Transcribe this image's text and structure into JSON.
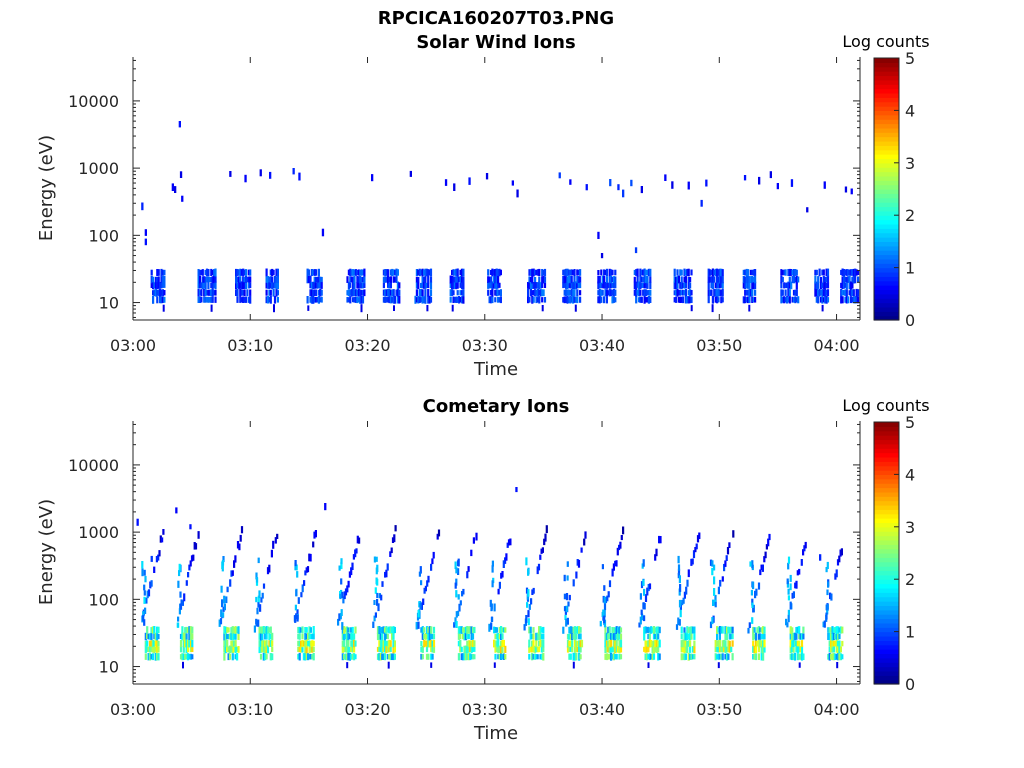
{
  "figure": {
    "title": "RPCICA160207T03.PNG"
  },
  "chart_data": [
    {
      "type": "heatmap",
      "title": "Solar Wind Ions",
      "xlabel": "Time",
      "ylabel": "Energy (eV)",
      "xticks": [
        "03:00",
        "03:10",
        "03:20",
        "03:30",
        "03:40",
        "03:50",
        "04:00"
      ],
      "xlim_minutes": [
        0,
        62
      ],
      "yticks": [
        "10",
        "100",
        "1000",
        "10000"
      ],
      "yscale": "log",
      "ylim": [
        5.5,
        45000
      ],
      "colorbar": {
        "title": "Log counts",
        "ticks": [
          "0",
          "1",
          "2",
          "3",
          "4",
          "5"
        ],
        "range": [
          0,
          5
        ]
      },
      "cycle_start_minutes": [
        1.5,
        5.5,
        8.7,
        11.3,
        14.8,
        18.2,
        21.3,
        24.0,
        27.0,
        30.2,
        33.6,
        36.6,
        39.6,
        42.7,
        46.1,
        49.0,
        52.0,
        55.2,
        58.1,
        60.3
      ],
      "low_band_energies_eV": [
        11,
        14,
        18,
        22,
        28
      ],
      "low_band_level": 0.9,
      "high_band_points": [
        {
          "t": 0.7,
          "e": 270,
          "v": 0.8
        },
        {
          "t": 1.0,
          "e": 80,
          "v": 0.7
        },
        {
          "t": 1.0,
          "e": 110,
          "v": 0.6
        },
        {
          "t": 3.3,
          "e": 520,
          "v": 0.6
        },
        {
          "t": 3.5,
          "e": 480,
          "v": 0.5
        },
        {
          "t": 3.9,
          "e": 4500,
          "v": 0.7
        },
        {
          "t": 4.0,
          "e": 800,
          "v": 0.5
        },
        {
          "t": 4.1,
          "e": 350,
          "v": 0.6
        },
        {
          "t": 8.2,
          "e": 820,
          "v": 0.5
        },
        {
          "t": 9.5,
          "e": 700,
          "v": 0.6
        },
        {
          "t": 10.8,
          "e": 850,
          "v": 0.5
        },
        {
          "t": 11.6,
          "e": 780,
          "v": 0.7
        },
        {
          "t": 13.6,
          "e": 900,
          "v": 0.8
        },
        {
          "t": 14.1,
          "e": 750,
          "v": 0.7
        },
        {
          "t": 16.1,
          "e": 110,
          "v": 0.6
        },
        {
          "t": 20.3,
          "e": 720,
          "v": 0.6
        },
        {
          "t": 23.6,
          "e": 820,
          "v": 0.5
        },
        {
          "t": 26.6,
          "e": 610,
          "v": 0.6
        },
        {
          "t": 27.3,
          "e": 520,
          "v": 0.5
        },
        {
          "t": 28.6,
          "e": 640,
          "v": 0.7
        },
        {
          "t": 30.1,
          "e": 760,
          "v": 0.5
        },
        {
          "t": 32.3,
          "e": 600,
          "v": 0.6
        },
        {
          "t": 32.7,
          "e": 420,
          "v": 0.5
        },
        {
          "t": 36.3,
          "e": 780,
          "v": 0.9
        },
        {
          "t": 37.2,
          "e": 620,
          "v": 0.6
        },
        {
          "t": 38.6,
          "e": 520,
          "v": 0.7
        },
        {
          "t": 39.6,
          "e": 100,
          "v": 0.6
        },
        {
          "t": 39.9,
          "e": 50,
          "v": 0.5
        },
        {
          "t": 40.6,
          "e": 610,
          "v": 1.0
        },
        {
          "t": 41.3,
          "e": 520,
          "v": 0.8
        },
        {
          "t": 41.7,
          "e": 420,
          "v": 0.9
        },
        {
          "t": 42.4,
          "e": 600,
          "v": 1.0
        },
        {
          "t": 42.8,
          "e": 60,
          "v": 0.9
        },
        {
          "t": 43.3,
          "e": 480,
          "v": 0.5
        },
        {
          "t": 45.3,
          "e": 720,
          "v": 0.6
        },
        {
          "t": 45.9,
          "e": 560,
          "v": 0.5
        },
        {
          "t": 47.3,
          "e": 550,
          "v": 0.6
        },
        {
          "t": 48.4,
          "e": 300,
          "v": 0.8
        },
        {
          "t": 48.8,
          "e": 600,
          "v": 0.7
        },
        {
          "t": 52.1,
          "e": 720,
          "v": 0.7
        },
        {
          "t": 53.3,
          "e": 650,
          "v": 0.5
        },
        {
          "t": 54.3,
          "e": 800,
          "v": 0.5
        },
        {
          "t": 54.9,
          "e": 540,
          "v": 0.6
        },
        {
          "t": 56.1,
          "e": 600,
          "v": 0.7
        },
        {
          "t": 57.4,
          "e": 240,
          "v": 0.5
        },
        {
          "t": 58.9,
          "e": 560,
          "v": 0.6
        },
        {
          "t": 60.7,
          "e": 480,
          "v": 0.5
        },
        {
          "t": 61.2,
          "e": 450,
          "v": 0.6
        }
      ]
    },
    {
      "type": "heatmap",
      "title": "Cometary Ions",
      "xlabel": "Time",
      "ylabel": "Energy (eV)",
      "xticks": [
        "03:00",
        "03:10",
        "03:20",
        "03:30",
        "03:40",
        "03:50",
        "04:00"
      ],
      "xlim_minutes": [
        0,
        62
      ],
      "yticks": [
        "10",
        "100",
        "1000",
        "10000"
      ],
      "yscale": "log",
      "ylim": [
        5.5,
        45000
      ],
      "colorbar": {
        "title": "Log counts",
        "ticks": [
          "0",
          "1",
          "2",
          "3",
          "4",
          "5"
        ],
        "range": [
          0,
          5
        ]
      },
      "cycle_start_minutes": [
        1.0,
        4.0,
        7.7,
        10.7,
        14.0,
        17.8,
        20.8,
        24.5,
        27.7,
        30.7,
        33.7,
        37.0,
        40.2,
        43.5,
        46.7,
        49.6,
        52.8,
        56.0,
        59.2
      ],
      "low_band_energies_eV": [
        14,
        18,
        22,
        28,
        35
      ],
      "low_band_level": 2.0,
      "high_band_points": [
        {
          "t": 0.3,
          "e": 1400,
          "v": 0.7
        },
        {
          "t": 1.5,
          "e": 400,
          "v": 0.9
        },
        {
          "t": 3.6,
          "e": 2100,
          "v": 0.6
        },
        {
          "t": 4.8,
          "e": 1200,
          "v": 0.7
        },
        {
          "t": 16.3,
          "e": 2400,
          "v": 0.6
        },
        {
          "t": 32.6,
          "e": 4300,
          "v": 0.7
        },
        {
          "t": 58.5,
          "e": 420,
          "v": 0.8
        },
        {
          "t": 49.2,
          "e": 350,
          "v": 1.0
        }
      ]
    }
  ]
}
